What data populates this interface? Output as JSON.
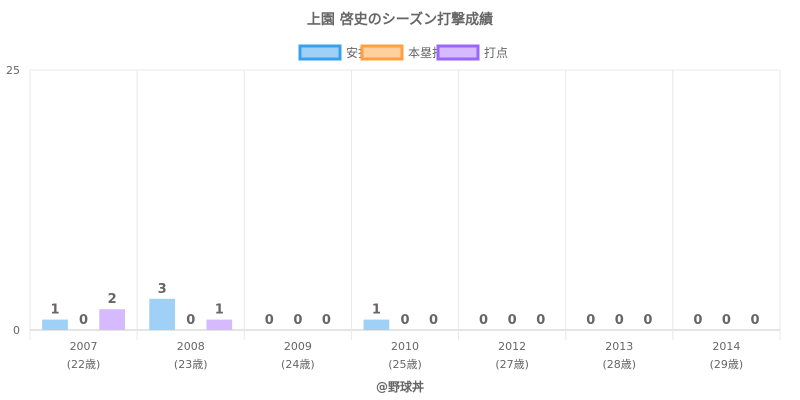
{
  "chart_data": {
    "type": "bar",
    "title": "上園 啓史のシーズン打撃成績",
    "categories": [
      "2007",
      "2008",
      "2009",
      "2010",
      "2012",
      "2013",
      "2014"
    ],
    "category_sublabels": [
      "(22歳)",
      "(23歳)",
      "(24歳)",
      "(25歳)",
      "(27歳)",
      "(28歳)",
      "(29歳)"
    ],
    "series": [
      {
        "name": "安打",
        "values": [
          1,
          3,
          0,
          1,
          0,
          0,
          0
        ],
        "fill": "#9fd0f5",
        "stroke": "#36a2eb"
      },
      {
        "name": "本塁打",
        "values": [
          0,
          0,
          0,
          0,
          0,
          0,
          0
        ],
        "fill": "#ffcf9f",
        "stroke": "#ff9f40"
      },
      {
        "name": "打点",
        "values": [
          2,
          1,
          0,
          0,
          0,
          0,
          0
        ],
        "fill": "#d6baff",
        "stroke": "#9966ff"
      }
    ],
    "yticks": [
      "0",
      "25"
    ],
    "ylim": [
      0,
      25
    ],
    "legend_position": "top",
    "grid": true
  },
  "credit": "@野球丼"
}
